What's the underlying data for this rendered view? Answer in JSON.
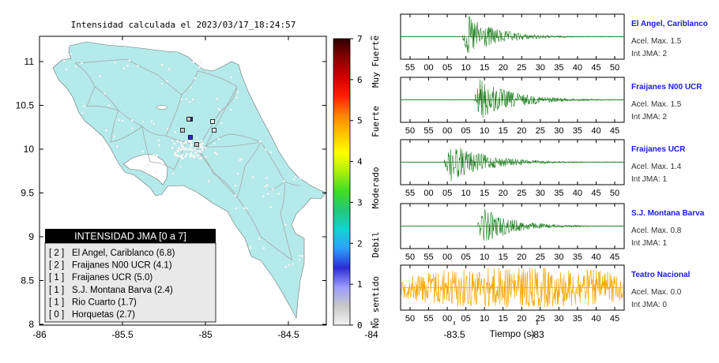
{
  "title": "Intensidad calculada el 2023/03/17_18:24:57",
  "map": {
    "x_ticks": [
      "-86",
      "-85.5",
      "-85",
      "-84.5",
      "-84",
      "-83.5",
      "-83"
    ],
    "y_ticks": [
      "11",
      "10.5",
      "10",
      "9.5",
      "9",
      "8.5",
      "8"
    ],
    "colors": {
      "land": "#b4eaea",
      "water": "#ffffff",
      "roads": "#a8a8a8",
      "border": "#777777"
    }
  },
  "legend": {
    "header": "INTENSIDAD JMA [0 a 7]",
    "items": [
      {
        "level": "2",
        "name": "El Angel, Cariblanco",
        "value": "6.8"
      },
      {
        "level": "2",
        "name": "Fraijanes N00 UCR",
        "value": "4.1"
      },
      {
        "level": "1",
        "name": "Fraijanes UCR",
        "value": "5.0"
      },
      {
        "level": "1",
        "name": "S.J. Montana Barva",
        "value": "2.4"
      },
      {
        "level": "1",
        "name": "Rio Cuarto",
        "value": "1.7"
      },
      {
        "level": "0",
        "name": "Horquetas",
        "value": "2.7"
      }
    ]
  },
  "colorbar": {
    "ticks": [
      "0",
      "1",
      "2",
      "3",
      "4",
      "5",
      "6",
      "7"
    ],
    "levels": [
      "Muy Fuerte",
      "Fuerte",
      "Moderado",
      "Debil",
      "No sentido"
    ],
    "stops": [
      "#f2f2f2",
      "#c8c8c8",
      "#9a9aff",
      "#2c2cd6",
      "#2aa0ff",
      "#14d2d2",
      "#22c87a",
      "#3edd22",
      "#a8ee10",
      "#ffff00",
      "#ffc400",
      "#ff8200",
      "#ff1e00",
      "#cf0000",
      "#8a0000",
      "#2a0000"
    ]
  },
  "chart_data": [
    {
      "type": "line",
      "station": "El Angel, Cariblanco",
      "acel_label": "Acel. Max. 1.5",
      "int_label": "Int JMA: 2",
      "color": "#1a7a1a",
      "x_ticks": [
        "55",
        "00",
        "05",
        "10",
        "15",
        "20",
        "25",
        "30",
        "35",
        "40",
        "45",
        "50"
      ],
      "onset_tick": 2.8,
      "amp": 1.0,
      "duration": 2.5
    },
    {
      "type": "line",
      "station": "Fraijanes N00 UCR",
      "acel_label": "Acel. Max. 1.5",
      "int_label": "Int JMA: 2",
      "color": "#1a7a1a",
      "x_ticks": [
        "50",
        "55",
        "00",
        "05",
        "10",
        "15",
        "20",
        "25",
        "30",
        "35",
        "40",
        "45"
      ],
      "onset_tick": 3.4,
      "amp": 0.95,
      "duration": 3.0
    },
    {
      "type": "line",
      "station": "Fraijanes UCR",
      "acel_label": "Acel. Max. 1.4",
      "int_label": "Int JMA: 1",
      "color": "#1a7a1a",
      "x_ticks": [
        "55",
        "00",
        "05",
        "10",
        "15",
        "20",
        "25",
        "30",
        "35",
        "40",
        "45",
        "50"
      ],
      "onset_tick": 1.8,
      "amp": 0.9,
      "duration": 3.2
    },
    {
      "type": "line",
      "station": "S.J. Montana Barva",
      "acel_label": "Acel. Max. 0.8",
      "int_label": "Int JMA: 1",
      "color": "#1a7a1a",
      "x_ticks": [
        "50",
        "55",
        "00",
        "05",
        "10",
        "15",
        "20",
        "25",
        "30",
        "35",
        "40",
        "45"
      ],
      "onset_tick": 3.6,
      "amp": 0.85,
      "duration": 2.6
    },
    {
      "type": "line",
      "station": "Teatro Nacional",
      "acel_label": "Acel. Max. 0.0",
      "int_label": "Int JMA: 0",
      "color": "#f5a800",
      "x_ticks": [
        "50",
        "55",
        "00",
        "05",
        "10",
        "15",
        "20",
        "25",
        "30",
        "35",
        "40",
        "45"
      ],
      "onset_tick": 4.0,
      "amp": 0.95,
      "duration": 6.0,
      "noisy": true
    }
  ],
  "xlabel": "Tiempo (s)"
}
